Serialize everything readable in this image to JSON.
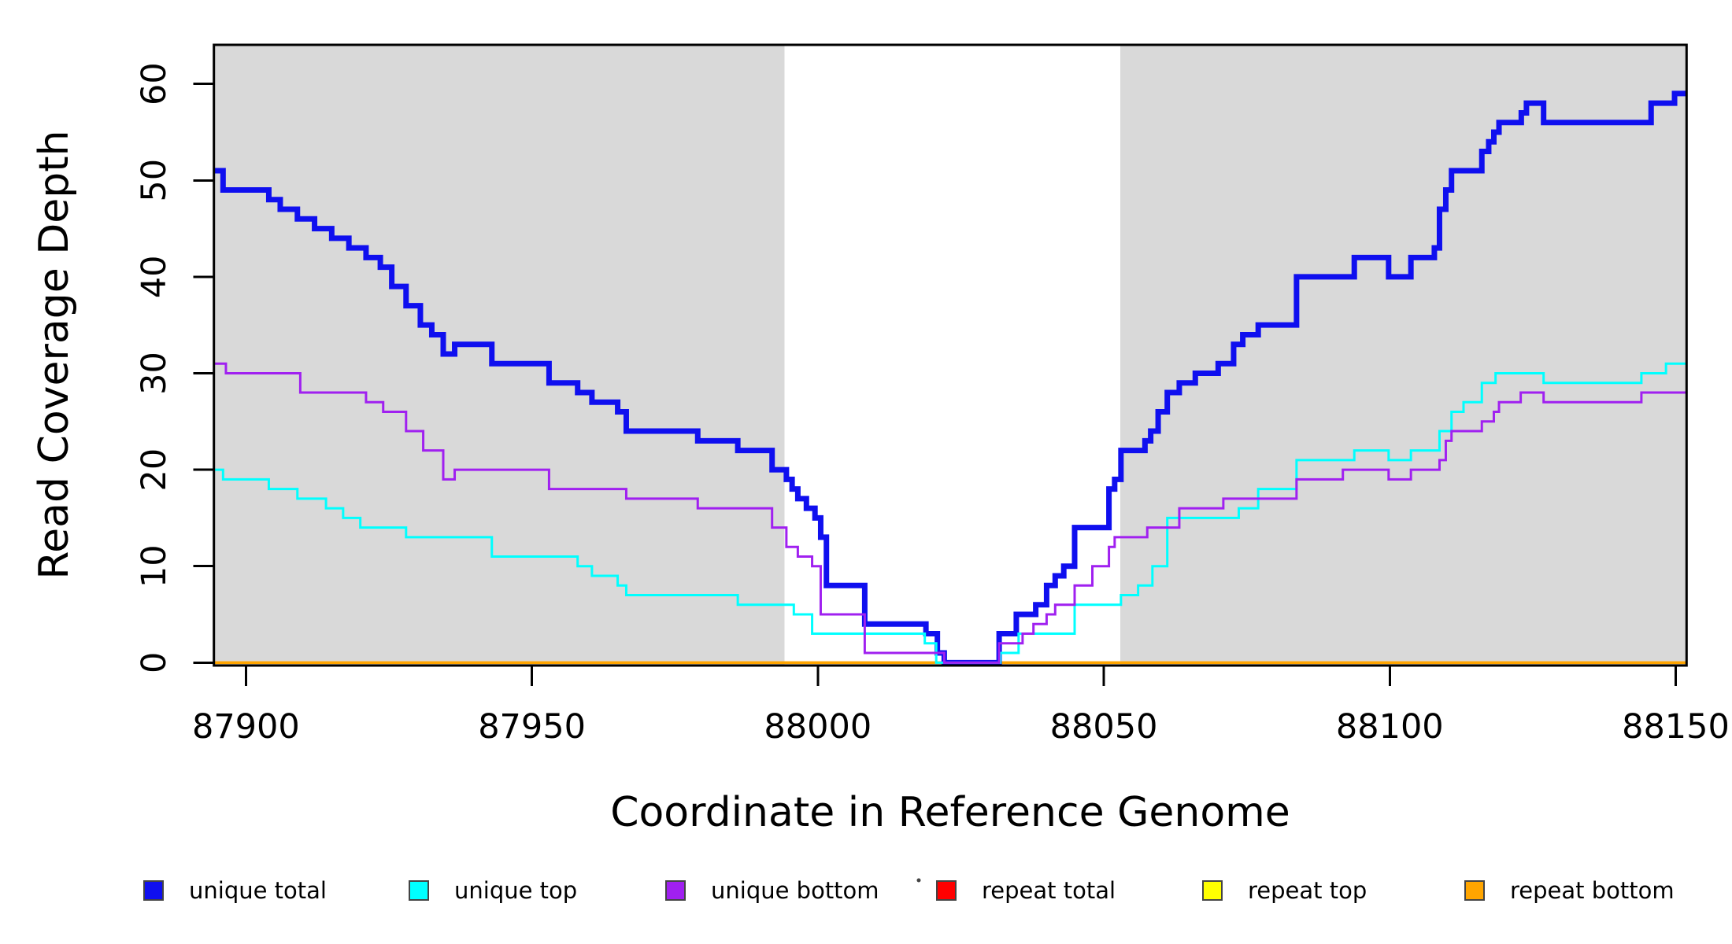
{
  "chart_data": {
    "type": "line",
    "step": "post",
    "title": "",
    "xlabel": "Coordinate in Reference Genome",
    "ylabel": "Read Coverage Depth",
    "x_range": [
      87894.4,
      88151.9
    ],
    "y_range": [
      -0.3,
      64.05
    ],
    "x_ticks": [
      87900,
      87950,
      88000,
      88050,
      88100,
      88150
    ],
    "y_ticks": [
      0,
      10,
      20,
      30,
      40,
      50,
      60
    ],
    "grid": false,
    "legend_position": "bottom",
    "background_color": "#ffffff",
    "shaded_region_color": "#d9d9d9",
    "shaded_regions": [
      {
        "from": 87894.4,
        "to": 87994.2
      },
      {
        "from": 88052.9,
        "to": 88151.9
      }
    ],
    "series": [
      {
        "name": "repeat total",
        "color": "#ff0000",
        "width": 3,
        "points": [
          [
            87894.4,
            0
          ],
          [
            88151.9,
            0
          ]
        ]
      },
      {
        "name": "repeat top",
        "color": "#ffff00",
        "width": 3,
        "points": [
          [
            87894.4,
            0
          ],
          [
            88151.9,
            0
          ]
        ]
      },
      {
        "name": "repeat bottom",
        "color": "#ffa500",
        "width": 3.5,
        "points": [
          [
            87894.4,
            0
          ],
          [
            88151.9,
            0
          ]
        ]
      },
      {
        "name": "unique total",
        "color": "#0f0fef",
        "width": 7,
        "points": [
          [
            87894.4,
            51
          ],
          [
            87896,
            49
          ],
          [
            87904,
            48
          ],
          [
            87906,
            47
          ],
          [
            87909,
            46
          ],
          [
            87912,
            45
          ],
          [
            87915,
            44
          ],
          [
            87918,
            43
          ],
          [
            87921,
            42
          ],
          [
            87923.5,
            41
          ],
          [
            87925.5,
            39
          ],
          [
            87928,
            37
          ],
          [
            87930.5,
            35
          ],
          [
            87932.5,
            34
          ],
          [
            87934.5,
            32
          ],
          [
            87936.5,
            33
          ],
          [
            87943,
            31
          ],
          [
            87953,
            29
          ],
          [
            87958,
            28
          ],
          [
            87960.5,
            27
          ],
          [
            87965,
            26
          ],
          [
            87966.5,
            24
          ],
          [
            87979,
            23
          ],
          [
            87986,
            22
          ],
          [
            87992,
            20
          ],
          [
            87994.5,
            19
          ],
          [
            87995.5,
            18
          ],
          [
            87996.5,
            17
          ],
          [
            87998,
            16
          ],
          [
            87999.5,
            15
          ],
          [
            88000.5,
            13
          ],
          [
            88001.5,
            8
          ],
          [
            88008.2,
            4
          ],
          [
            88018.9,
            3
          ],
          [
            88020.9,
            1
          ],
          [
            88022.1,
            0
          ],
          [
            88031.7,
            3
          ],
          [
            88034.7,
            5
          ],
          [
            88038.1,
            6
          ],
          [
            88040,
            8
          ],
          [
            88041.5,
            9
          ],
          [
            88043,
            10
          ],
          [
            88044.9,
            14
          ],
          [
            88050.9,
            18
          ],
          [
            88051.9,
            19
          ],
          [
            88053,
            22
          ],
          [
            88057.2,
            23
          ],
          [
            88058.2,
            24
          ],
          [
            88059.5,
            26
          ],
          [
            88061.1,
            28
          ],
          [
            88063.2,
            29
          ],
          [
            88066,
            30
          ],
          [
            88070,
            31
          ],
          [
            88072.7,
            33
          ],
          [
            88074.3,
            34
          ],
          [
            88077,
            35
          ],
          [
            88083.7,
            40
          ],
          [
            88093.8,
            42
          ],
          [
            88099.8,
            40
          ],
          [
            88103.7,
            42
          ],
          [
            88107.8,
            43
          ],
          [
            88108.7,
            47
          ],
          [
            88109.8,
            49
          ],
          [
            88110.8,
            51
          ],
          [
            88116.1,
            53
          ],
          [
            88117.3,
            54
          ],
          [
            88118.2,
            55
          ],
          [
            88119.1,
            56
          ],
          [
            88123,
            57
          ],
          [
            88123.9,
            58
          ],
          [
            88126.9,
            56
          ],
          [
            88145.7,
            58
          ],
          [
            88149.8,
            59
          ]
        ]
      },
      {
        "name": "unique top",
        "color": "#00ffff",
        "width": 3,
        "points": [
          [
            87894.4,
            20
          ],
          [
            87896,
            19
          ],
          [
            87904,
            18
          ],
          [
            87909,
            17
          ],
          [
            87914,
            16
          ],
          [
            87917,
            15
          ],
          [
            87920,
            14
          ],
          [
            87928,
            13
          ],
          [
            87943,
            11
          ],
          [
            87958,
            10
          ],
          [
            87960.5,
            9
          ],
          [
            87965,
            8
          ],
          [
            87966.5,
            7
          ],
          [
            87986,
            6
          ],
          [
            87995.8,
            5
          ],
          [
            87999,
            3
          ],
          [
            88018.7,
            2
          ],
          [
            88020.7,
            0
          ],
          [
            88031.9,
            1
          ],
          [
            88035.1,
            3
          ],
          [
            88044.9,
            6
          ],
          [
            88053,
            7
          ],
          [
            88056,
            8
          ],
          [
            88058.5,
            10
          ],
          [
            88061.1,
            15
          ],
          [
            88073.6,
            16
          ],
          [
            88077,
            18
          ],
          [
            88083.7,
            21
          ],
          [
            88093.8,
            22
          ],
          [
            88099.8,
            21
          ],
          [
            88103.7,
            22
          ],
          [
            88108.7,
            24
          ],
          [
            88110.8,
            26
          ],
          [
            88112.9,
            27
          ],
          [
            88116.1,
            29
          ],
          [
            88118.5,
            30
          ],
          [
            88126.9,
            29
          ],
          [
            88144,
            30
          ],
          [
            88148.3,
            31
          ]
        ]
      },
      {
        "name": "unique bottom",
        "color": "#a020f0",
        "width": 3,
        "points": [
          [
            87894.4,
            31
          ],
          [
            87896.5,
            30
          ],
          [
            87909.5,
            28
          ],
          [
            87921,
            27
          ],
          [
            87924,
            26
          ],
          [
            87928,
            24
          ],
          [
            87931,
            22
          ],
          [
            87934.5,
            19
          ],
          [
            87936.5,
            20
          ],
          [
            87953,
            18
          ],
          [
            87966.5,
            17
          ],
          [
            87979,
            16
          ],
          [
            87992,
            14
          ],
          [
            87994.5,
            12
          ],
          [
            87996.5,
            11
          ],
          [
            87999,
            10
          ],
          [
            88000.5,
            5
          ],
          [
            88008.2,
            1
          ],
          [
            88022.1,
            0
          ],
          [
            88031.7,
            2
          ],
          [
            88035.8,
            3
          ],
          [
            88037.7,
            4
          ],
          [
            88040,
            5
          ],
          [
            88041.5,
            6
          ],
          [
            88044.9,
            8
          ],
          [
            88048,
            10
          ],
          [
            88050.9,
            12
          ],
          [
            88051.9,
            13
          ],
          [
            88057.6,
            14
          ],
          [
            88063.2,
            16
          ],
          [
            88070.9,
            17
          ],
          [
            88083.7,
            19
          ],
          [
            88091.8,
            20
          ],
          [
            88099.8,
            19
          ],
          [
            88103.7,
            20
          ],
          [
            88108.7,
            21
          ],
          [
            88109.8,
            23
          ],
          [
            88110.8,
            24
          ],
          [
            88116.1,
            25
          ],
          [
            88118.2,
            26
          ],
          [
            88119.1,
            27
          ],
          [
            88122.9,
            28
          ],
          [
            88126.9,
            27
          ],
          [
            88144,
            28
          ]
        ]
      }
    ],
    "legend": [
      {
        "label": "unique total",
        "color": "#0f0fef"
      },
      {
        "label": "unique top",
        "color": "#00ffff"
      },
      {
        "label": "unique bottom",
        "color": "#a020f0"
      },
      {
        "label": "repeat total",
        "color": "#ff0000"
      },
      {
        "label": "repeat top",
        "color": "#ffff00"
      },
      {
        "label": "repeat bottom",
        "color": "#ffa500"
      }
    ]
  }
}
